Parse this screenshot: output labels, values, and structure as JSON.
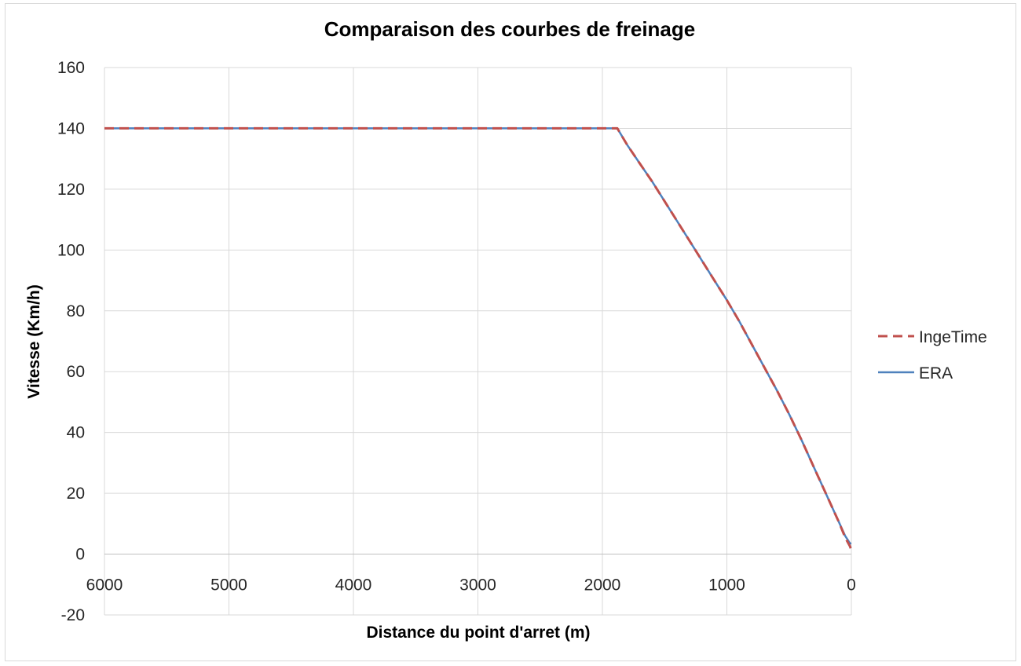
{
  "chart_data": {
    "type": "line",
    "title": "Comparaison des courbes de freinage",
    "xlabel": "Distance du point d'arret (m)",
    "ylabel": "Vitesse (Km/h)",
    "xlim": [
      6000,
      0
    ],
    "x_reversed": true,
    "ylim": [
      -20,
      160
    ],
    "xticks": [
      6000,
      5000,
      4000,
      3000,
      2000,
      1000,
      0
    ],
    "yticks": [
      160,
      140,
      120,
      100,
      80,
      60,
      40,
      20,
      0,
      -20
    ],
    "grid": true,
    "legend_position": "right",
    "series": [
      {
        "name": "IngeTime",
        "color": "#c0504d",
        "style": "dashed",
        "x": [
          6000,
          1880,
          1800,
          1700,
          1600,
          1500,
          1400,
          1300,
          1200,
          1100,
          1000,
          900,
          800,
          700,
          600,
          500,
          400,
          300,
          200,
          100,
          50,
          10,
          0
        ],
        "y": [
          140,
          140,
          134.5,
          128.5,
          122.5,
          116,
          109.5,
          103,
          96.5,
          90,
          83.5,
          76.5,
          69,
          61.5,
          54,
          46,
          37.5,
          28.5,
          19.5,
          10.5,
          5.5,
          2.5,
          1
        ]
      },
      {
        "name": "ERA",
        "color": "#4f81bd",
        "style": "solid",
        "x": [
          6000,
          1880,
          1800,
          1700,
          1600,
          1500,
          1400,
          1300,
          1200,
          1100,
          1000,
          900,
          800,
          700,
          600,
          500,
          400,
          300,
          200,
          100,
          50,
          10,
          0
        ],
        "y": [
          140,
          140,
          134.5,
          128.5,
          122.5,
          116,
          109.5,
          103,
          96.5,
          90,
          83.5,
          76.5,
          69,
          61.5,
          54,
          46,
          37.5,
          28.5,
          19.5,
          10.5,
          6,
          3.5,
          3.5
        ]
      }
    ]
  }
}
